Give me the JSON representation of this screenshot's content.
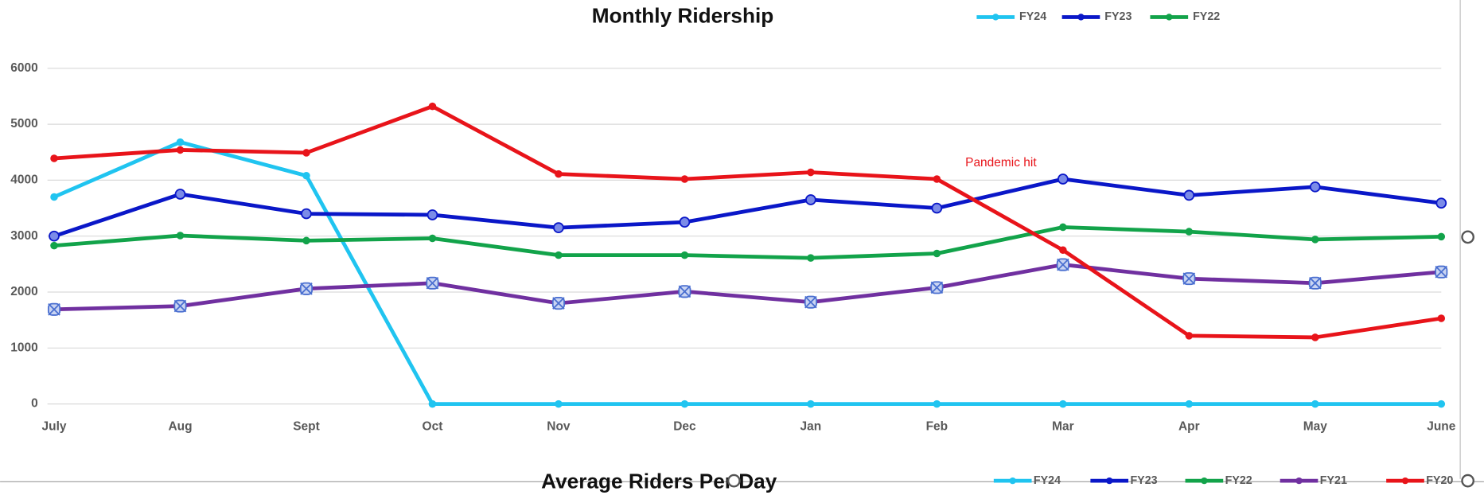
{
  "chart_data": [
    {
      "type": "line",
      "title": "Monthly Ridership",
      "categories": [
        "July",
        "Aug",
        "Sept",
        "Oct",
        "Nov",
        "Dec",
        "Jan",
        "Feb",
        "Mar",
        "Apr",
        "May",
        "June"
      ],
      "ylim": [
        0,
        6000
      ],
      "yticks": [
        0,
        1000,
        2000,
        3000,
        4000,
        5000,
        6000
      ],
      "grid": true,
      "legend": "top-right",
      "annotations": [
        {
          "text": "Pandemic hit",
          "color": "#e8141a"
        }
      ],
      "series": [
        {
          "name": "FY24",
          "color": "#20c4f0",
          "values": [
            3700,
            4680,
            4080,
            0,
            0,
            0,
            0,
            0,
            0,
            0,
            0,
            0
          ]
        },
        {
          "name": "FY23",
          "color": "#0a17c8",
          "values": [
            3000,
            3750,
            3400,
            3380,
            3150,
            3250,
            3650,
            3500,
            4020,
            3730,
            3880,
            3590
          ]
        },
        {
          "name": "FY22",
          "color": "#12a34a",
          "values": [
            2830,
            3010,
            2920,
            2960,
            2660,
            2660,
            2610,
            2690,
            3160,
            3080,
            2940,
            2990
          ]
        },
        {
          "color": "#7030a0",
          "values": [
            1690,
            1750,
            2060,
            2160,
            1800,
            2010,
            1820,
            2080,
            2490,
            2240,
            2160,
            2360
          ]
        },
        {
          "color": "#e8141a",
          "values": [
            4390,
            4540,
            4490,
            5320,
            4110,
            4020,
            4140,
            4020,
            2750,
            1220,
            1190,
            1530
          ]
        }
      ]
    },
    {
      "type": "line",
      "title": "Average Riders Per Day",
      "series": [
        {
          "name": "FY24",
          "color": "#20c4f0"
        },
        {
          "name": "FY23",
          "color": "#0a17c8"
        },
        {
          "name": "FY22",
          "color": "#12a34a"
        },
        {
          "name": "FY21",
          "color": "#7030a0"
        },
        {
          "name": "FY20",
          "color": "#e8141a"
        }
      ]
    }
  ]
}
